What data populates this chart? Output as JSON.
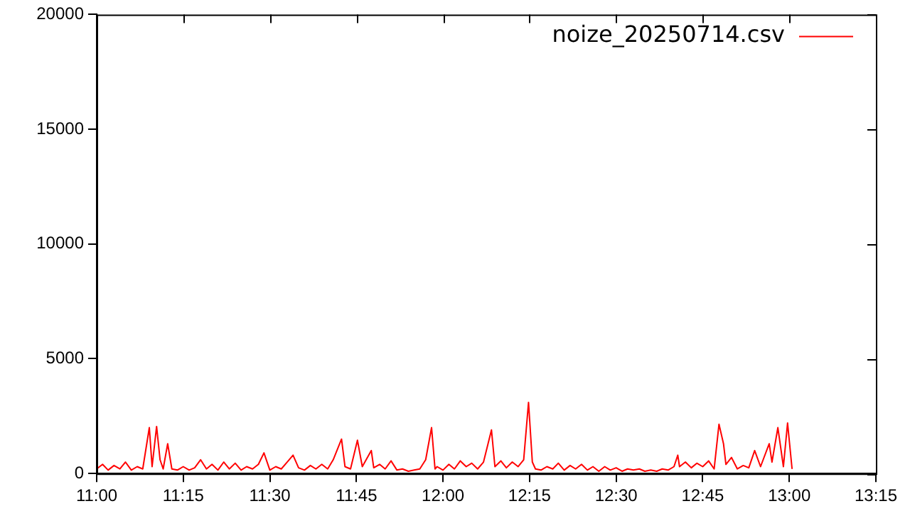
{
  "chart_data": {
    "type": "line",
    "xlim": [
      11,
      13.25
    ],
    "ylim": [
      0,
      20000
    ],
    "xticks": [
      {
        "value": 11,
        "label": "11:00"
      },
      {
        "value": 11.25,
        "label": "11:15"
      },
      {
        "value": 11.5,
        "label": "11:30"
      },
      {
        "value": 11.75,
        "label": "11:45"
      },
      {
        "value": 12,
        "label": "12:00"
      },
      {
        "value": 12.25,
        "label": "12:15"
      },
      {
        "value": 12.5,
        "label": "12:30"
      },
      {
        "value": 12.75,
        "label": "12:45"
      },
      {
        "value": 13,
        "label": "13:00"
      },
      {
        "value": 13.25,
        "label": "13:15"
      }
    ],
    "yticks": [
      0,
      5000,
      10000,
      15000,
      20000
    ],
    "grid": false,
    "legend": "top right",
    "marker": "none",
    "line_style": "solid",
    "series": [
      {
        "name": "noize_20250714.csv",
        "color": "#ff0000",
        "x": [
          11,
          11.017,
          11.033,
          11.05,
          11.067,
          11.083,
          11.1,
          11.117,
          11.133,
          11.152,
          11.16,
          11.173,
          11.183,
          11.192,
          11.205,
          11.217,
          11.233,
          11.25,
          11.267,
          11.283,
          11.3,
          11.317,
          11.333,
          11.35,
          11.367,
          11.383,
          11.4,
          11.417,
          11.433,
          11.45,
          11.467,
          11.483,
          11.5,
          11.517,
          11.533,
          11.55,
          11.567,
          11.583,
          11.6,
          11.617,
          11.633,
          11.65,
          11.667,
          11.683,
          11.707,
          11.717,
          11.733,
          11.753,
          11.767,
          11.793,
          11.8,
          11.817,
          11.833,
          11.85,
          11.867,
          11.883,
          11.9,
          11.917,
          11.933,
          11.95,
          11.967,
          11.977,
          11.983,
          12,
          12.017,
          12.033,
          12.05,
          12.067,
          12.083,
          12.1,
          12.117,
          12.14,
          12.15,
          12.167,
          12.183,
          12.2,
          12.217,
          12.233,
          12.247,
          12.258,
          12.267,
          12.283,
          12.3,
          12.317,
          12.333,
          12.35,
          12.367,
          12.383,
          12.4,
          12.417,
          12.433,
          12.45,
          12.467,
          12.483,
          12.5,
          12.517,
          12.533,
          12.55,
          12.567,
          12.583,
          12.6,
          12.617,
          12.633,
          12.65,
          12.667,
          12.678,
          12.683,
          12.7,
          12.717,
          12.733,
          12.75,
          12.767,
          12.783,
          12.797,
          12.81,
          12.817,
          12.833,
          12.85,
          12.867,
          12.883,
          12.9,
          12.917,
          12.942,
          12.95,
          12.967,
          12.983,
          12.995,
          13.008
        ],
        "values": [
          200,
          400,
          150,
          350,
          200,
          500,
          150,
          300,
          200,
          2000,
          300,
          2050,
          600,
          200,
          1300,
          200,
          150,
          300,
          150,
          250,
          600,
          200,
          400,
          150,
          500,
          200,
          450,
          150,
          300,
          200,
          400,
          900,
          150,
          300,
          200,
          500,
          800,
          250,
          150,
          350,
          200,
          400,
          200,
          600,
          1500,
          300,
          200,
          1450,
          300,
          1000,
          250,
          400,
          200,
          550,
          150,
          200,
          100,
          150,
          200,
          600,
          2000,
          200,
          300,
          150,
          400,
          200,
          550,
          300,
          450,
          200,
          500,
          1900,
          300,
          550,
          250,
          500,
          300,
          600,
          3100,
          500,
          200,
          150,
          300,
          200,
          450,
          150,
          350,
          200,
          400,
          150,
          300,
          100,
          300,
          150,
          250,
          100,
          200,
          150,
          200,
          100,
          150,
          100,
          200,
          150,
          300,
          800,
          300,
          500,
          250,
          450,
          300,
          550,
          200,
          2150,
          1300,
          400,
          700,
          200,
          350,
          250,
          1000,
          300,
          1300,
          500,
          2000,
          300,
          2200,
          200
        ]
      }
    ]
  }
}
